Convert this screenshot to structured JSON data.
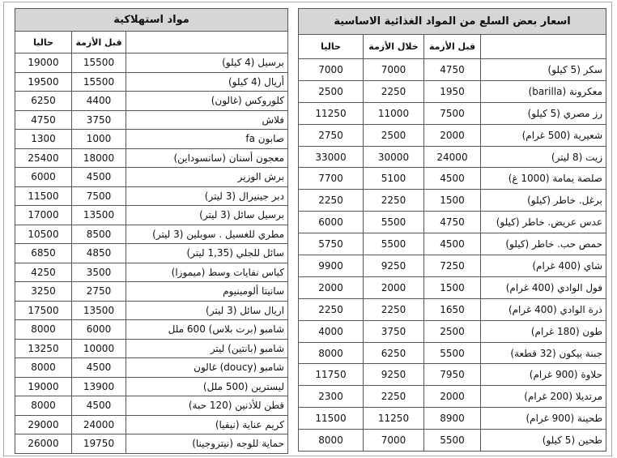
{
  "left": {
    "title": "مواد استهلاكية",
    "headers": [
      "قبل الأزمة",
      "حاليا"
    ],
    "rows": [
      [
        "برسيل (4 كيلو)",
        15500,
        19000
      ],
      [
        "أريال (4 كيلو)",
        15500,
        19500
      ],
      [
        "كلوروكس (غالون)",
        4400,
        6250
      ],
      [
        "فلاش",
        3750,
        4750
      ],
      [
        "صابون fa",
        1000,
        1300
      ],
      [
        "معجون أسنان (سانسوداين)",
        18000,
        25400
      ],
      [
        "برش الوزير",
        4500,
        6000
      ],
      [
        "دبر جينيرال (3 ليتر)",
        7500,
        11500
      ],
      [
        "برسيل سائل (3 ليتر)",
        13500,
        17000
      ],
      [
        "مطري للغسيل . سوبلين (3 ليتر)",
        8500,
        10500
      ],
      [
        "سائل للجلي (1,35 ليتر)",
        4850,
        6850
      ],
      [
        "كياس نفايات وسط (ميموزا)",
        3500,
        4250
      ],
      [
        "سانيتا ألومينيوم",
        2750,
        3250
      ],
      [
        "اريال سائل (3 ليتر)",
        13500,
        17500
      ],
      [
        "شامبو (برت بلاس) 600 ملل",
        6000,
        8000
      ],
      [
        "شامبو (بانتين) ليتر",
        10000,
        13250
      ],
      [
        "شامبو (doucy) غالون",
        4500,
        8000
      ],
      [
        "ليسترين (500 ملل)",
        13900,
        19000
      ],
      [
        "قطن للأذنين (120 حبة)",
        4500,
        8000
      ],
      [
        "كريم عناية (نيفيا)",
        24000,
        29000
      ],
      [
        "حماية للوجه (نيتروجينا)",
        19750,
        26000
      ]
    ]
  },
  "right": {
    "title": "اسعار بعض السلع من المواد الغذائية الاساسية",
    "headers": [
      "قبل الأزمة",
      "خلال الأزمة",
      "حاليا"
    ],
    "rows": [
      [
        "سكر (5 كيلو)",
        4750,
        7000,
        7000
      ],
      [
        "معكرونة (barilla)",
        1950,
        2250,
        2500
      ],
      [
        "رز مصري (5 كيلو)",
        7500,
        11000,
        11250
      ],
      [
        "شعيرية (500 غرام)",
        2000,
        2500,
        2750
      ],
      [
        "زيت (8 ليتر)",
        24000,
        30000,
        33000
      ],
      [
        "صلصة يمامة (1000 غ)",
        4500,
        5100,
        7700
      ],
      [
        "برغل. خاطر (كيلو)",
        1500,
        2250,
        2250
      ],
      [
        "عدس عريض. خاطر (كيلو)",
        4750,
        5500,
        6000
      ],
      [
        "حمص حب. خاطر (كيلو)",
        4500,
        5500,
        5750
      ],
      [
        "شاي (400 غرام)",
        7250,
        9250,
        9900
      ],
      [
        "فول الوادي (400 غرام)",
        1500,
        2000,
        2000
      ],
      [
        "ذرة الوادي (400 غرام)",
        1650,
        2250,
        2250
      ],
      [
        "طون (180 غرام)",
        2500,
        3750,
        4000
      ],
      [
        "جبنة بيكون (32 قطعة)",
        5500,
        6250,
        8000
      ],
      [
        "حلاوة (900 غرام)",
        7950,
        9250,
        11750
      ],
      [
        "مرتديلا (200 غرام)",
        2000,
        2250,
        2300
      ],
      [
        "طحينة (900 غرام)",
        8900,
        11250,
        11500
      ],
      [
        "طحين (5 كيلو)",
        5500,
        7000,
        8000
      ]
    ]
  }
}
